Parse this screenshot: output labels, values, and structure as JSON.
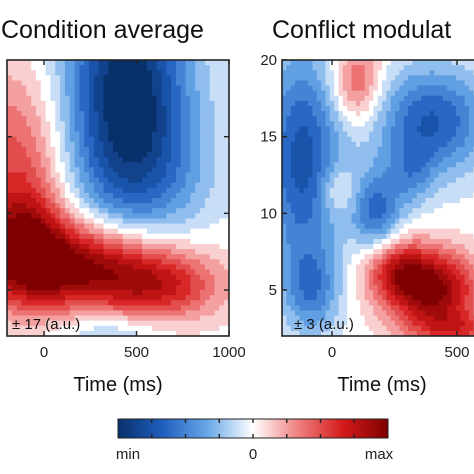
{
  "chart_data": [
    {
      "type": "heatmap",
      "title": "Condition average",
      "xlabel": "Time (ms)",
      "ylabel": "",
      "xlim": [
        -200,
        1000
      ],
      "ylim": [
        2,
        20
      ],
      "x_ticks": [
        "0",
        "500",
        "1000"
      ],
      "y_ticks": [],
      "scale_annotation": "± 17 (a.u.)",
      "blobs": [
        {
          "x": 450,
          "y": 19,
          "sx": 230,
          "sy": 5.0,
          "a": -1.0
        },
        {
          "x": 520,
          "y": 12.5,
          "sx": 260,
          "sy": 3.5,
          "a": -0.45
        },
        {
          "x": 200,
          "y": 6.5,
          "sx": 330,
          "sy": 2.0,
          "a": 0.95
        },
        {
          "x": 650,
          "y": 5.2,
          "sx": 230,
          "sy": 1.6,
          "a": 0.55
        },
        {
          "x": -150,
          "y": 13,
          "sx": 180,
          "sy": 4.5,
          "a": 0.5
        },
        {
          "x": -100,
          "y": 8,
          "sx": 160,
          "sy": 2.5,
          "a": 0.6
        },
        {
          "x": 350,
          "y": 2.2,
          "sx": 200,
          "sy": 1.0,
          "a": -0.25
        }
      ]
    },
    {
      "type": "heatmap",
      "title": "Conflict modulat",
      "xlabel": "Time (ms)",
      "ylabel": "",
      "xlim": [
        -200,
        600
      ],
      "ylim": [
        2,
        20
      ],
      "x_ticks": [
        "0",
        "500"
      ],
      "y_ticks": [
        "5",
        "10",
        "15",
        "20"
      ],
      "scale_annotation": "± 3 (a.u.)",
      "blobs": [
        {
          "x": 400,
          "y": 5,
          "sx": 130,
          "sy": 1.8,
          "a": 1.0
        },
        {
          "x": 250,
          "y": 6.5,
          "sx": 90,
          "sy": 1.4,
          "a": 0.55
        },
        {
          "x": 100,
          "y": 18.5,
          "sx": 70,
          "sy": 1.8,
          "a": 0.5
        },
        {
          "x": 500,
          "y": 2.4,
          "sx": 120,
          "sy": 0.8,
          "a": 0.45
        },
        {
          "x": -120,
          "y": 13.5,
          "sx": 110,
          "sy": 5.0,
          "a": -0.75
        },
        {
          "x": 400,
          "y": 16,
          "sx": 160,
          "sy": 2.5,
          "a": -0.7
        },
        {
          "x": 180,
          "y": 10,
          "sx": 70,
          "sy": 2.0,
          "a": -0.6
        },
        {
          "x": -80,
          "y": 5,
          "sx": 80,
          "sy": 2.0,
          "a": -0.45
        },
        {
          "x": 20,
          "y": 11.5,
          "sx": 50,
          "sy": 1.0,
          "a": 0.25
        },
        {
          "x": 320,
          "y": 12.5,
          "sx": 60,
          "sy": 1.5,
          "a": -0.3
        }
      ]
    }
  ],
  "colorbar": {
    "min_label": "min",
    "zero_label": "0",
    "max_label": "max",
    "colors": [
      "#08306b",
      "#1f5fbf",
      "#6aa8e8",
      "#ffffff",
      "#f08080",
      "#d41a1a",
      "#7f0000"
    ]
  }
}
